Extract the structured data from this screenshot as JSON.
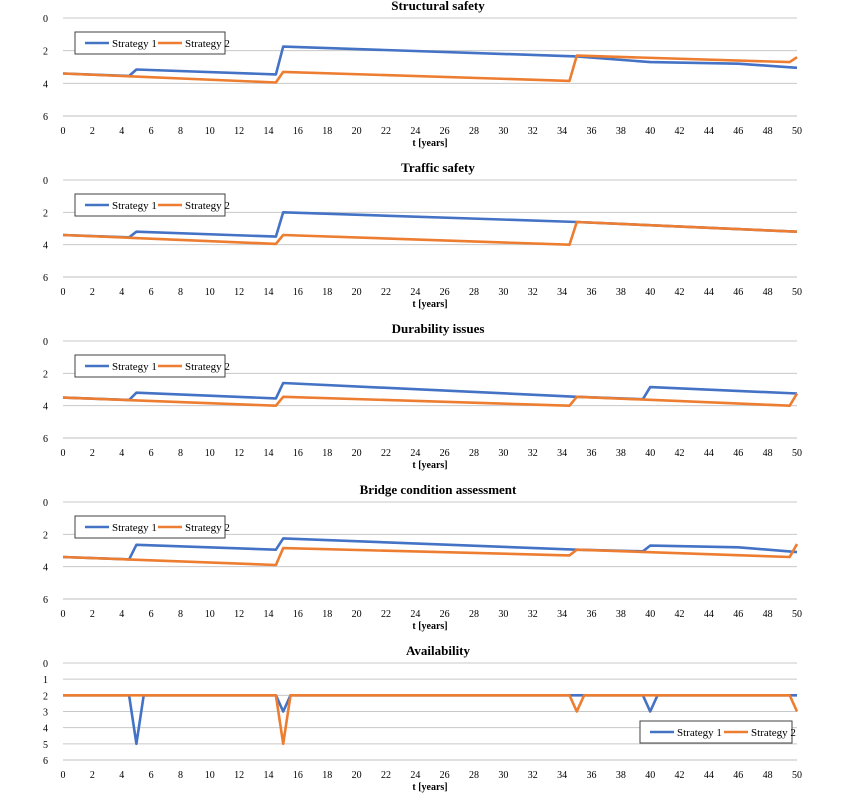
{
  "chart_data": [
    {
      "type": "line",
      "title": "Structural safety",
      "xlabel": "t [years]",
      "ylim": [
        0,
        6
      ],
      "y_inverted": true,
      "yticks": [
        0,
        2,
        4,
        6
      ],
      "xticks": [
        0,
        2,
        4,
        6,
        8,
        10,
        12,
        14,
        16,
        18,
        20,
        22,
        24,
        26,
        28,
        30,
        32,
        34,
        36,
        38,
        40,
        42,
        44,
        46,
        48,
        50
      ],
      "legend": "top-left",
      "series": [
        {
          "name": "Strategy 1",
          "color": "#4472c4",
          "points": [
            [
              0,
              3.4
            ],
            [
              4.5,
              3.55
            ],
            [
              5,
              3.15
            ],
            [
              14.5,
              3.45
            ],
            [
              15,
              1.75
            ],
            [
              35,
              2.35
            ],
            [
              40,
              2.7
            ],
            [
              46,
              2.8
            ],
            [
              50,
              3.05
            ]
          ]
        },
        {
          "name": "Strategy 2",
          "color": "#ed7d31",
          "points": [
            [
              0,
              3.4
            ],
            [
              14.5,
              3.95
            ],
            [
              15,
              3.3
            ],
            [
              34.5,
              3.85
            ],
            [
              35,
              2.3
            ],
            [
              49.5,
              2.7
            ],
            [
              50,
              2.4
            ]
          ]
        }
      ]
    },
    {
      "type": "line",
      "title": "Traffic safety",
      "xlabel": "t [years]",
      "ylim": [
        0,
        6
      ],
      "y_inverted": true,
      "yticks": [
        0,
        2,
        4,
        6
      ],
      "xticks": [
        0,
        2,
        4,
        6,
        8,
        10,
        12,
        14,
        16,
        18,
        20,
        22,
        24,
        26,
        28,
        30,
        32,
        34,
        36,
        38,
        40,
        42,
        44,
        46,
        48,
        50
      ],
      "legend": "top-left",
      "series": [
        {
          "name": "Strategy 1",
          "color": "#4472c4",
          "points": [
            [
              0,
              3.4
            ],
            [
              4.5,
              3.55
            ],
            [
              5,
              3.2
            ],
            [
              14.5,
              3.5
            ],
            [
              15,
              2.0
            ],
            [
              35,
              2.6
            ],
            [
              50,
              3.2
            ]
          ]
        },
        {
          "name": "Strategy 2",
          "color": "#ed7d31",
          "points": [
            [
              0,
              3.4
            ],
            [
              14.5,
              3.95
            ],
            [
              15,
              3.4
            ],
            [
              34.5,
              4.0
            ],
            [
              35,
              2.6
            ],
            [
              50,
              3.2
            ]
          ]
        }
      ]
    },
    {
      "type": "line",
      "title": "Durability issues",
      "xlabel": "t [years]",
      "ylim": [
        0,
        6
      ],
      "y_inverted": true,
      "yticks": [
        0,
        2,
        4,
        6
      ],
      "xticks": [
        0,
        2,
        4,
        6,
        8,
        10,
        12,
        14,
        16,
        18,
        20,
        22,
        24,
        26,
        28,
        30,
        32,
        34,
        36,
        38,
        40,
        42,
        44,
        46,
        48,
        50
      ],
      "legend": "top-left",
      "series": [
        {
          "name": "Strategy 1",
          "color": "#4472c4",
          "points": [
            [
              0,
              3.5
            ],
            [
              4.5,
              3.65
            ],
            [
              5,
              3.2
            ],
            [
              14.5,
              3.55
            ],
            [
              15,
              2.6
            ],
            [
              35,
              3.45
            ],
            [
              39.5,
              3.6
            ],
            [
              40,
              2.85
            ],
            [
              50,
              3.25
            ]
          ]
        },
        {
          "name": "Strategy 2",
          "color": "#ed7d31",
          "points": [
            [
              0,
              3.5
            ],
            [
              14.5,
              4.0
            ],
            [
              15,
              3.45
            ],
            [
              34.5,
              4.0
            ],
            [
              35,
              3.45
            ],
            [
              49.5,
              4.0
            ],
            [
              50,
              3.25
            ]
          ]
        }
      ]
    },
    {
      "type": "line",
      "title": "Bridge condition assessment",
      "xlabel": "t [years]",
      "ylim": [
        0,
        6
      ],
      "y_inverted": true,
      "yticks": [
        0,
        2,
        4,
        6
      ],
      "xticks": [
        0,
        2,
        4,
        6,
        8,
        10,
        12,
        14,
        16,
        18,
        20,
        22,
        24,
        26,
        28,
        30,
        32,
        34,
        36,
        38,
        40,
        42,
        44,
        46,
        48,
        50
      ],
      "legend": "top-left",
      "series": [
        {
          "name": "Strategy 1",
          "color": "#4472c4",
          "points": [
            [
              0,
              3.4
            ],
            [
              4.5,
              3.55
            ],
            [
              5,
              2.65
            ],
            [
              14.5,
              2.95
            ],
            [
              15,
              2.25
            ],
            [
              35,
              2.95
            ],
            [
              39.5,
              3.05
            ],
            [
              40,
              2.7
            ],
            [
              46,
              2.8
            ],
            [
              50,
              3.1
            ]
          ]
        },
        {
          "name": "Strategy 2",
          "color": "#ed7d31",
          "points": [
            [
              0,
              3.4
            ],
            [
              14.5,
              3.9
            ],
            [
              15,
              2.85
            ],
            [
              34.5,
              3.3
            ],
            [
              35,
              2.95
            ],
            [
              49.5,
              3.4
            ],
            [
              50,
              2.6
            ]
          ]
        }
      ]
    },
    {
      "type": "line",
      "title": "Availability",
      "xlabel": "t [years]",
      "ylim": [
        0,
        6
      ],
      "y_inverted": true,
      "yticks": [
        0,
        1,
        2,
        3,
        4,
        5,
        6
      ],
      "xticks": [
        0,
        2,
        4,
        6,
        8,
        10,
        12,
        14,
        16,
        18,
        20,
        22,
        24,
        26,
        28,
        30,
        32,
        34,
        36,
        38,
        40,
        42,
        44,
        46,
        48,
        50
      ],
      "legend": "bottom-right",
      "series": [
        {
          "name": "Strategy 1",
          "color": "#4472c4",
          "points": [
            [
              0,
              2
            ],
            [
              4.5,
              2
            ],
            [
              5,
              5
            ],
            [
              5.5,
              2
            ],
            [
              14.5,
              2
            ],
            [
              15,
              3
            ],
            [
              15.5,
              2
            ],
            [
              34.5,
              2
            ],
            [
              35,
              2
            ],
            [
              39.5,
              2
            ],
            [
              40,
              3
            ],
            [
              40.5,
              2
            ],
            [
              50,
              2
            ]
          ]
        },
        {
          "name": "Strategy 2",
          "color": "#ed7d31",
          "points": [
            [
              0,
              2
            ],
            [
              14.5,
              2
            ],
            [
              15,
              5
            ],
            [
              15.5,
              2
            ],
            [
              34.5,
              2
            ],
            [
              35,
              3
            ],
            [
              35.5,
              2
            ],
            [
              49.5,
              2
            ],
            [
              50,
              3
            ]
          ]
        }
      ]
    }
  ]
}
